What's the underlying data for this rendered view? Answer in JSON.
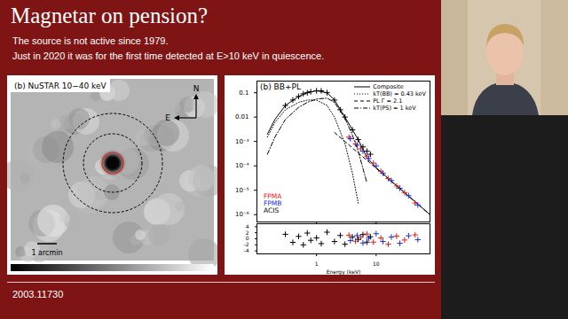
{
  "slide": {
    "title": "Magnetar on pension?",
    "lines": [
      "The source is not active since 1979.",
      "Just in 2020 it was for the first time detected at E>10 keV in quiescence."
    ],
    "footer": "2003.11730"
  },
  "image_panel": {
    "label": "(b) NuSTAR 10−40 keV",
    "compass": {
      "north": "N",
      "east": "E"
    },
    "scale_bar": "1 arcmin"
  },
  "chart_data": [
    {
      "type": "line",
      "title": "(b) BB+PL",
      "log": true,
      "xlim": [
        0.1,
        80
      ],
      "xticks": [
        1,
        10
      ],
      "ylim": [
        5e-07,
        0.3
      ],
      "yticks": [
        0.1,
        0.01,
        {
          "value": 0.001,
          "label": "10⁻³"
        },
        {
          "value": 0.0001,
          "label": "10⁻⁴"
        },
        {
          "value": 1e-05,
          "label": "10⁻⁵"
        },
        {
          "value": 1e-06,
          "label": "10⁻⁶"
        }
      ],
      "tick_labels": "y",
      "legend": "top-right",
      "series": [
        {
          "name": "Composite",
          "type": "line",
          "color": "#000000",
          "line_style": "solid",
          "x": [
            0.15,
            0.2,
            0.3,
            0.5,
            0.7,
            1,
            1.5,
            2,
            3,
            4,
            5,
            7,
            10,
            15,
            20,
            30,
            50,
            80
          ],
          "values": [
            0.002,
            0.008,
            0.03,
            0.07,
            0.1,
            0.12,
            0.1,
            0.05,
            0.01,
            0.003,
            0.0012,
            0.00022,
            8.5e-05,
            3.5e-05,
            1.9e-05,
            8e-06,
            2.7e-06,
            1e-06
          ]
        },
        {
          "name": "kT(BB) = 0.43 keV",
          "type": "line",
          "color": "#000000",
          "line_style": "dotted",
          "x": [
            0.15,
            0.2,
            0.3,
            0.5,
            0.7,
            1,
            1.5,
            2,
            3,
            4,
            5
          ],
          "values": [
            0.0015,
            0.006,
            0.02,
            0.04,
            0.05,
            0.05,
            0.03,
            0.01,
            0.0008,
            5e-05,
            3e-06
          ]
        },
        {
          "name": "PL  Γ = 2.1",
          "type": "line",
          "color": "#000000",
          "line_style": "dashed",
          "x": [
            2,
            3,
            4,
            5,
            7,
            10,
            15,
            20,
            30,
            50,
            80
          ],
          "values": [
            0.00233,
            0.001,
            0.00054,
            0.00034,
            0.00017,
            7.9e-05,
            3.4e-05,
            1.86e-05,
            7.9e-06,
            2.7e-06,
            1e-06
          ]
        },
        {
          "name": "kT(PS) = 1 keV",
          "type": "line",
          "color": "#000000",
          "line_style": "dashdot",
          "x": [
            0.15,
            0.2,
            0.3,
            0.5,
            0.7,
            1,
            1.5,
            2,
            3,
            4,
            5,
            7
          ],
          "values": [
            0.0003,
            0.0015,
            0.008,
            0.025,
            0.04,
            0.055,
            0.06,
            0.04,
            0.009,
            0.0018,
            0.0004,
            2e-05
          ]
        },
        {
          "name": "FPMA",
          "type": "scatter",
          "color": "#e0201b",
          "marker": "plus",
          "x": [
            3.5,
            4.5,
            5.5,
            7,
            9,
            12,
            16,
            22,
            30,
            45
          ],
          "values": [
            0.0015,
            0.0008,
            0.0005,
            0.00025,
            0.00013,
            6e-05,
            3e-05,
            1.5e-05,
            8e-06,
            3e-06
          ]
        },
        {
          "name": "FPMB",
          "type": "scatter",
          "color": "#1f2fd6",
          "marker": "plus",
          "x": [
            3.7,
            4.8,
            6,
            7.5,
            10,
            13,
            18,
            25,
            35,
            50
          ],
          "values": [
            0.0013,
            0.0007,
            0.0004,
            0.0002,
            0.0001,
            5e-05,
            2.5e-05,
            1.2e-05,
            6e-06,
            2.5e-06
          ]
        },
        {
          "name": "ACIS",
          "type": "scatter",
          "color": "#000000",
          "marker": "plus",
          "x": [
            0.3,
            0.4,
            0.5,
            0.6,
            0.7,
            0.8,
            1,
            1.2,
            1.5,
            2,
            2.5,
            3,
            4,
            5,
            6,
            7,
            8
          ],
          "values": [
            0.03,
            0.05,
            0.07,
            0.09,
            0.1,
            0.11,
            0.12,
            0.12,
            0.1,
            0.05,
            0.02,
            0.01,
            0.003,
            0.0012,
            0.0006,
            0.0004,
            0.0003
          ]
        }
      ]
    },
    {
      "type": "scatter",
      "x_label": "Energy (keV)",
      "log": "x",
      "xlim": [
        0.1,
        80
      ],
      "xticks": [
        1,
        10
      ],
      "ylim": [
        -5,
        5
      ],
      "yticks": [
        -4,
        -2,
        0,
        2,
        4
      ],
      "series": [
        {
          "name": "FPMA",
          "color": "#e0201b",
          "marker": "plus",
          "x": [
            3.5,
            4.5,
            5.5,
            7,
            9,
            12,
            16,
            22,
            30,
            45
          ],
          "values": [
            1.2,
            -0.8,
            0.5,
            1.6,
            -1.1,
            0.3,
            -1.8,
            0.9,
            -0.4,
            1.3
          ]
        },
        {
          "name": "FPMB",
          "color": "#1f2fd6",
          "marker": "plus",
          "x": [
            3.7,
            4.8,
            6,
            7.5,
            10,
            13,
            18,
            25,
            35,
            50
          ],
          "values": [
            -0.6,
            1.1,
            -1.4,
            0.2,
            1.7,
            -0.9,
            0.6,
            -1.5,
            1.0,
            -0.3
          ]
        },
        {
          "name": "ACIS",
          "color": "#000000",
          "marker": "plus",
          "x": [
            0.3,
            0.4,
            0.5,
            0.6,
            0.7,
            0.8,
            1,
            1.2,
            1.5,
            2,
            2.5,
            3,
            4,
            5,
            6,
            7,
            8
          ],
          "values": [
            1.5,
            -1.2,
            0.8,
            -2.0,
            1.9,
            -0.5,
            0.3,
            -1.6,
            2.2,
            -0.9,
            1.1,
            -1.8,
            0.6,
            -0.2,
            1.4,
            -1.1,
            0.7
          ]
        }
      ]
    }
  ]
}
